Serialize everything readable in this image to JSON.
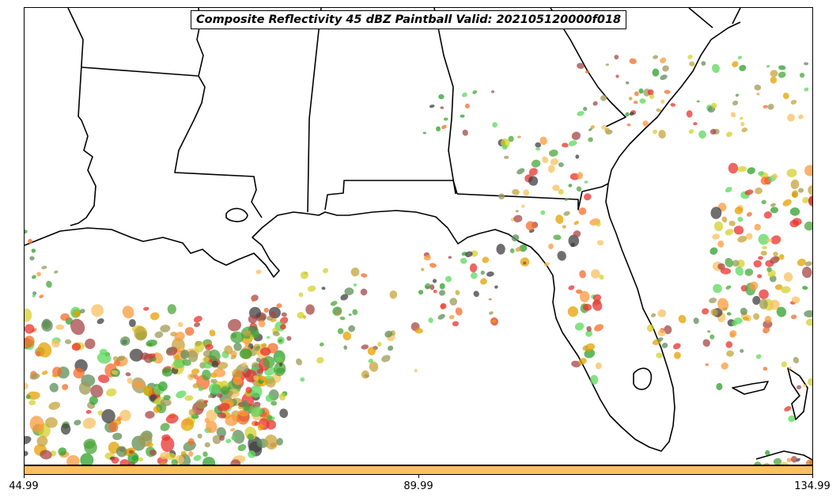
{
  "title": "Composite Reflectivity 45 dBZ Paintball Valid: 202105120000f018",
  "colorbar": {
    "color": "#fdbf60",
    "ticks": [
      "44.99",
      "89.99",
      "134.99"
    ]
  },
  "palette": [
    "#e8322e",
    "#f56c2a",
    "#fb9a3c",
    "#f8c060",
    "#c7a33a",
    "#9e9a55",
    "#4aa53a",
    "#2ea02a",
    "#5bd85b",
    "#5e8e57",
    "#3f3f3f",
    "#a54646",
    "#d4d02c",
    "#e4a000"
  ]
}
